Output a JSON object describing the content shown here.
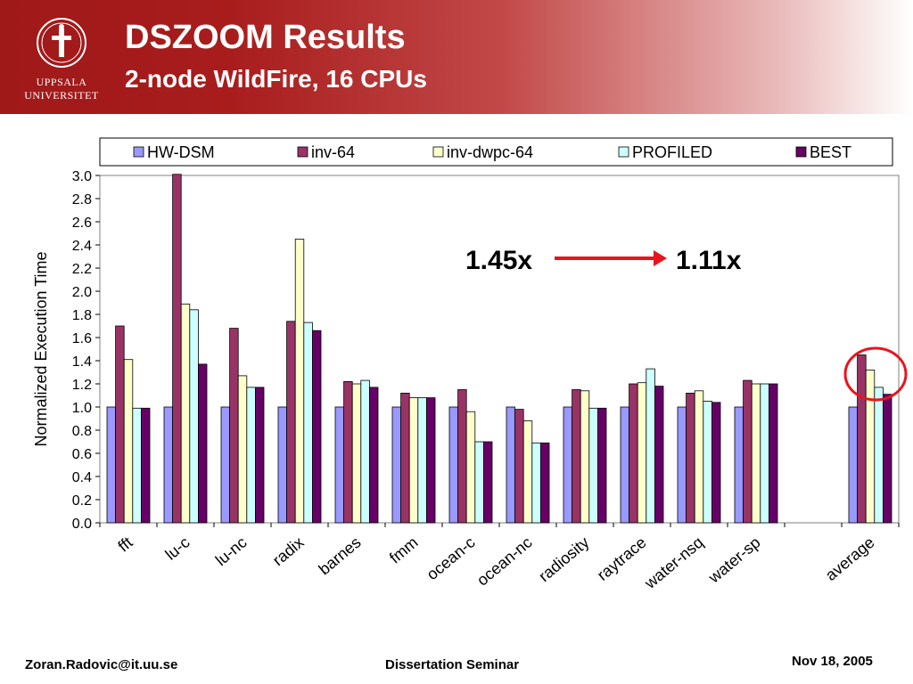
{
  "header": {
    "title": "DSZOOM Results",
    "subtitle": "2-node WildFire, 16 CPUs",
    "logo_line1": "UPPSALA",
    "logo_line2": "UNIVERSITET"
  },
  "footer": {
    "email": "Zoran.Radovic@it.uu.se",
    "event": "Dissertation Seminar",
    "date": "Nov 18, 2005"
  },
  "annotations": {
    "left_value": "1.45x",
    "right_value": "1.11x",
    "arrow_color": "#e8141c",
    "circle_color": "#e8141c"
  },
  "chart_data": {
    "type": "bar",
    "ylabel": "Normalized Execution Time",
    "ylim": [
      0.0,
      3.0
    ],
    "yticks": [
      "0.0",
      "0.2",
      "0.4",
      "0.6",
      "0.8",
      "1.0",
      "1.2",
      "1.4",
      "1.6",
      "1.8",
      "2.0",
      "2.2",
      "2.4",
      "2.6",
      "2.8",
      "3.0"
    ],
    "grid": false,
    "legend_position": "top",
    "categories": [
      "fft",
      "lu-c",
      "lu-nc",
      "radix",
      "barnes",
      "fmm",
      "ocean-c",
      "ocean-nc",
      "radiosity",
      "raytrace",
      "water-nsq",
      "water-sp",
      "",
      "average"
    ],
    "series": [
      {
        "name": "HW-DSM",
        "color": "#9999ff",
        "values": [
          1.0,
          1.0,
          1.0,
          1.0,
          1.0,
          1.0,
          1.0,
          1.0,
          1.0,
          1.0,
          1.0,
          1.0,
          null,
          1.0
        ]
      },
      {
        "name": "inv-64",
        "color": "#993366",
        "values": [
          1.7,
          3.01,
          1.68,
          1.74,
          1.22,
          1.12,
          1.15,
          0.98,
          1.15,
          1.2,
          1.12,
          1.23,
          null,
          1.45
        ]
      },
      {
        "name": "inv-dwpc-64",
        "color": "#ffffcc",
        "values": [
          1.41,
          1.89,
          1.27,
          2.45,
          1.2,
          1.08,
          0.96,
          0.88,
          1.14,
          1.21,
          1.14,
          1.2,
          null,
          1.32
        ]
      },
      {
        "name": "PROFILED",
        "color": "#ccffff",
        "values": [
          0.99,
          1.84,
          1.17,
          1.73,
          1.23,
          1.08,
          0.7,
          0.69,
          0.99,
          1.33,
          1.05,
          1.2,
          null,
          1.17
        ]
      },
      {
        "name": "BEST",
        "color": "#660066",
        "values": [
          0.99,
          1.37,
          1.17,
          1.66,
          1.17,
          1.08,
          0.7,
          0.69,
          0.99,
          1.18,
          1.04,
          1.2,
          null,
          1.11
        ]
      }
    ]
  }
}
